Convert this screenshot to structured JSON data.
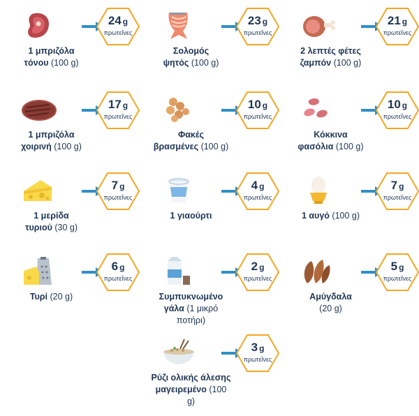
{
  "colors": {
    "accent": "#f5a623",
    "arrow": "#2f8fc7",
    "text": "#1f3554"
  },
  "items": [
    {
      "icon": "steak-icon",
      "name": "1 μπριζόλα",
      "name2": "τόνου",
      "amount": " (100 g)",
      "value": "24",
      "unit": "g",
      "word": "πρωτεΐνες"
    },
    {
      "icon": "salmon-icon",
      "name": "Σολομός",
      "name2": "ψητός",
      "amount": " (100 g)",
      "value": "23",
      "unit": "g",
      "word": "πρωτεΐνες"
    },
    {
      "icon": "ham-icon",
      "name": "2 λεπτές φέτες",
      "name2": "ζαμπόν",
      "amount": " (100 g)",
      "value": "21",
      "unit": "g",
      "word": "πρωτεΐνες"
    },
    {
      "icon": "pork-chop-icon",
      "name": "1 μπριζόλα",
      "name2": "χοιρινή",
      "amount": " (100 g)",
      "value": "17",
      "unit": "g",
      "word": "πρωτεΐνες"
    },
    {
      "icon": "lentils-icon",
      "name": "Φακές",
      "name2": "βρασμένες",
      "amount": " (100 g)",
      "value": "10",
      "unit": "g",
      "word": "πρωτεΐνες"
    },
    {
      "icon": "kidney-beans-icon",
      "name": "Κόκκινα",
      "name2": "φασόλια",
      "amount": " (100 g)",
      "value": "10",
      "unit": "g",
      "word": "πρωτεΐνες"
    },
    {
      "icon": "cheese-icon",
      "name": "1 μερίδα",
      "name2": "τυριού",
      "amount": " (30 g)",
      "value": "7",
      "unit": "g",
      "word": "πρωτεΐνες"
    },
    {
      "icon": "yogurt-icon",
      "name": "1 γιαούρτι",
      "name2": "",
      "amount": "",
      "value": "4",
      "unit": "g",
      "word": "πρωτεΐνες"
    },
    {
      "icon": "egg-icon",
      "name": "1 αυγό",
      "name2": "",
      "amount": " (100 g)",
      "value": "7",
      "unit": "g",
      "word": "πρωτεΐνες"
    },
    {
      "icon": "grated-cheese-icon",
      "name": "Τυρί",
      "name2": "",
      "amount": " (20 g)",
      "value": "6",
      "unit": "g",
      "word": "πρωτεΐνες"
    },
    {
      "icon": "milk-icon",
      "name": "Συμπυκνωμένο",
      "name2": "γάλα",
      "amount": " (1 μικρό ποτήρι)",
      "value": "2",
      "unit": "g",
      "word": "πρωτεΐνες"
    },
    {
      "icon": "almonds-icon",
      "name": "Αμύγδαλα",
      "name2": "",
      "amount": "(20 g)",
      "value": "5",
      "unit": "g",
      "word": "πρωτεΐνες"
    },
    {
      "icon": "rice-bowl-icon",
      "name": "Ρύζι ολικής άλεσης",
      "name2": "μαγειρεμένο",
      "amount": " (100 g)",
      "value": "3",
      "unit": "g",
      "word": "πρωτεΐνες"
    }
  ]
}
